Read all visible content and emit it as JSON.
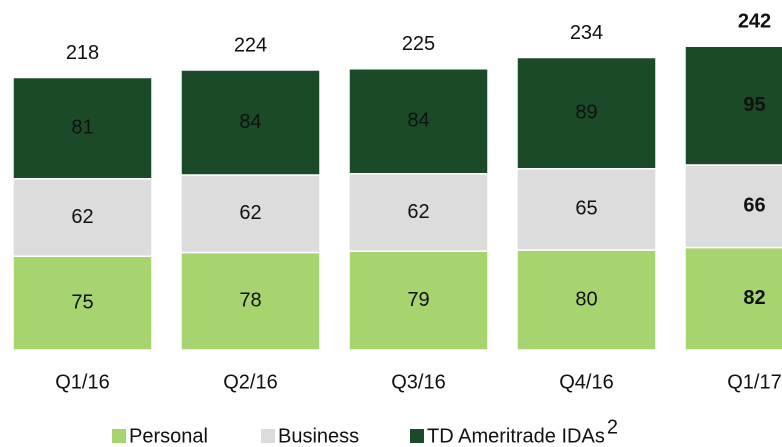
{
  "chart_data": {
    "type": "stacked_bar",
    "categories": [
      "Q1/16",
      "Q2/16",
      "Q3/16",
      "Q4/16",
      "Q1/17"
    ],
    "series": [
      {
        "name": "Personal",
        "color": "#a8d470",
        "values": [
          75,
          78,
          79,
          80,
          82
        ]
      },
      {
        "name": "Business",
        "color": "#dcdcdc",
        "values": [
          62,
          62,
          62,
          65,
          66
        ]
      },
      {
        "name": "TD Ameritrade IDAs",
        "color": "#1a4a27",
        "values": [
          81,
          84,
          84,
          89,
          95
        ]
      }
    ],
    "totals": [
      218,
      224,
      225,
      234,
      242
    ],
    "legend_footnote": "2",
    "bold_last": true,
    "ylim": [
      0,
      280
    ]
  }
}
